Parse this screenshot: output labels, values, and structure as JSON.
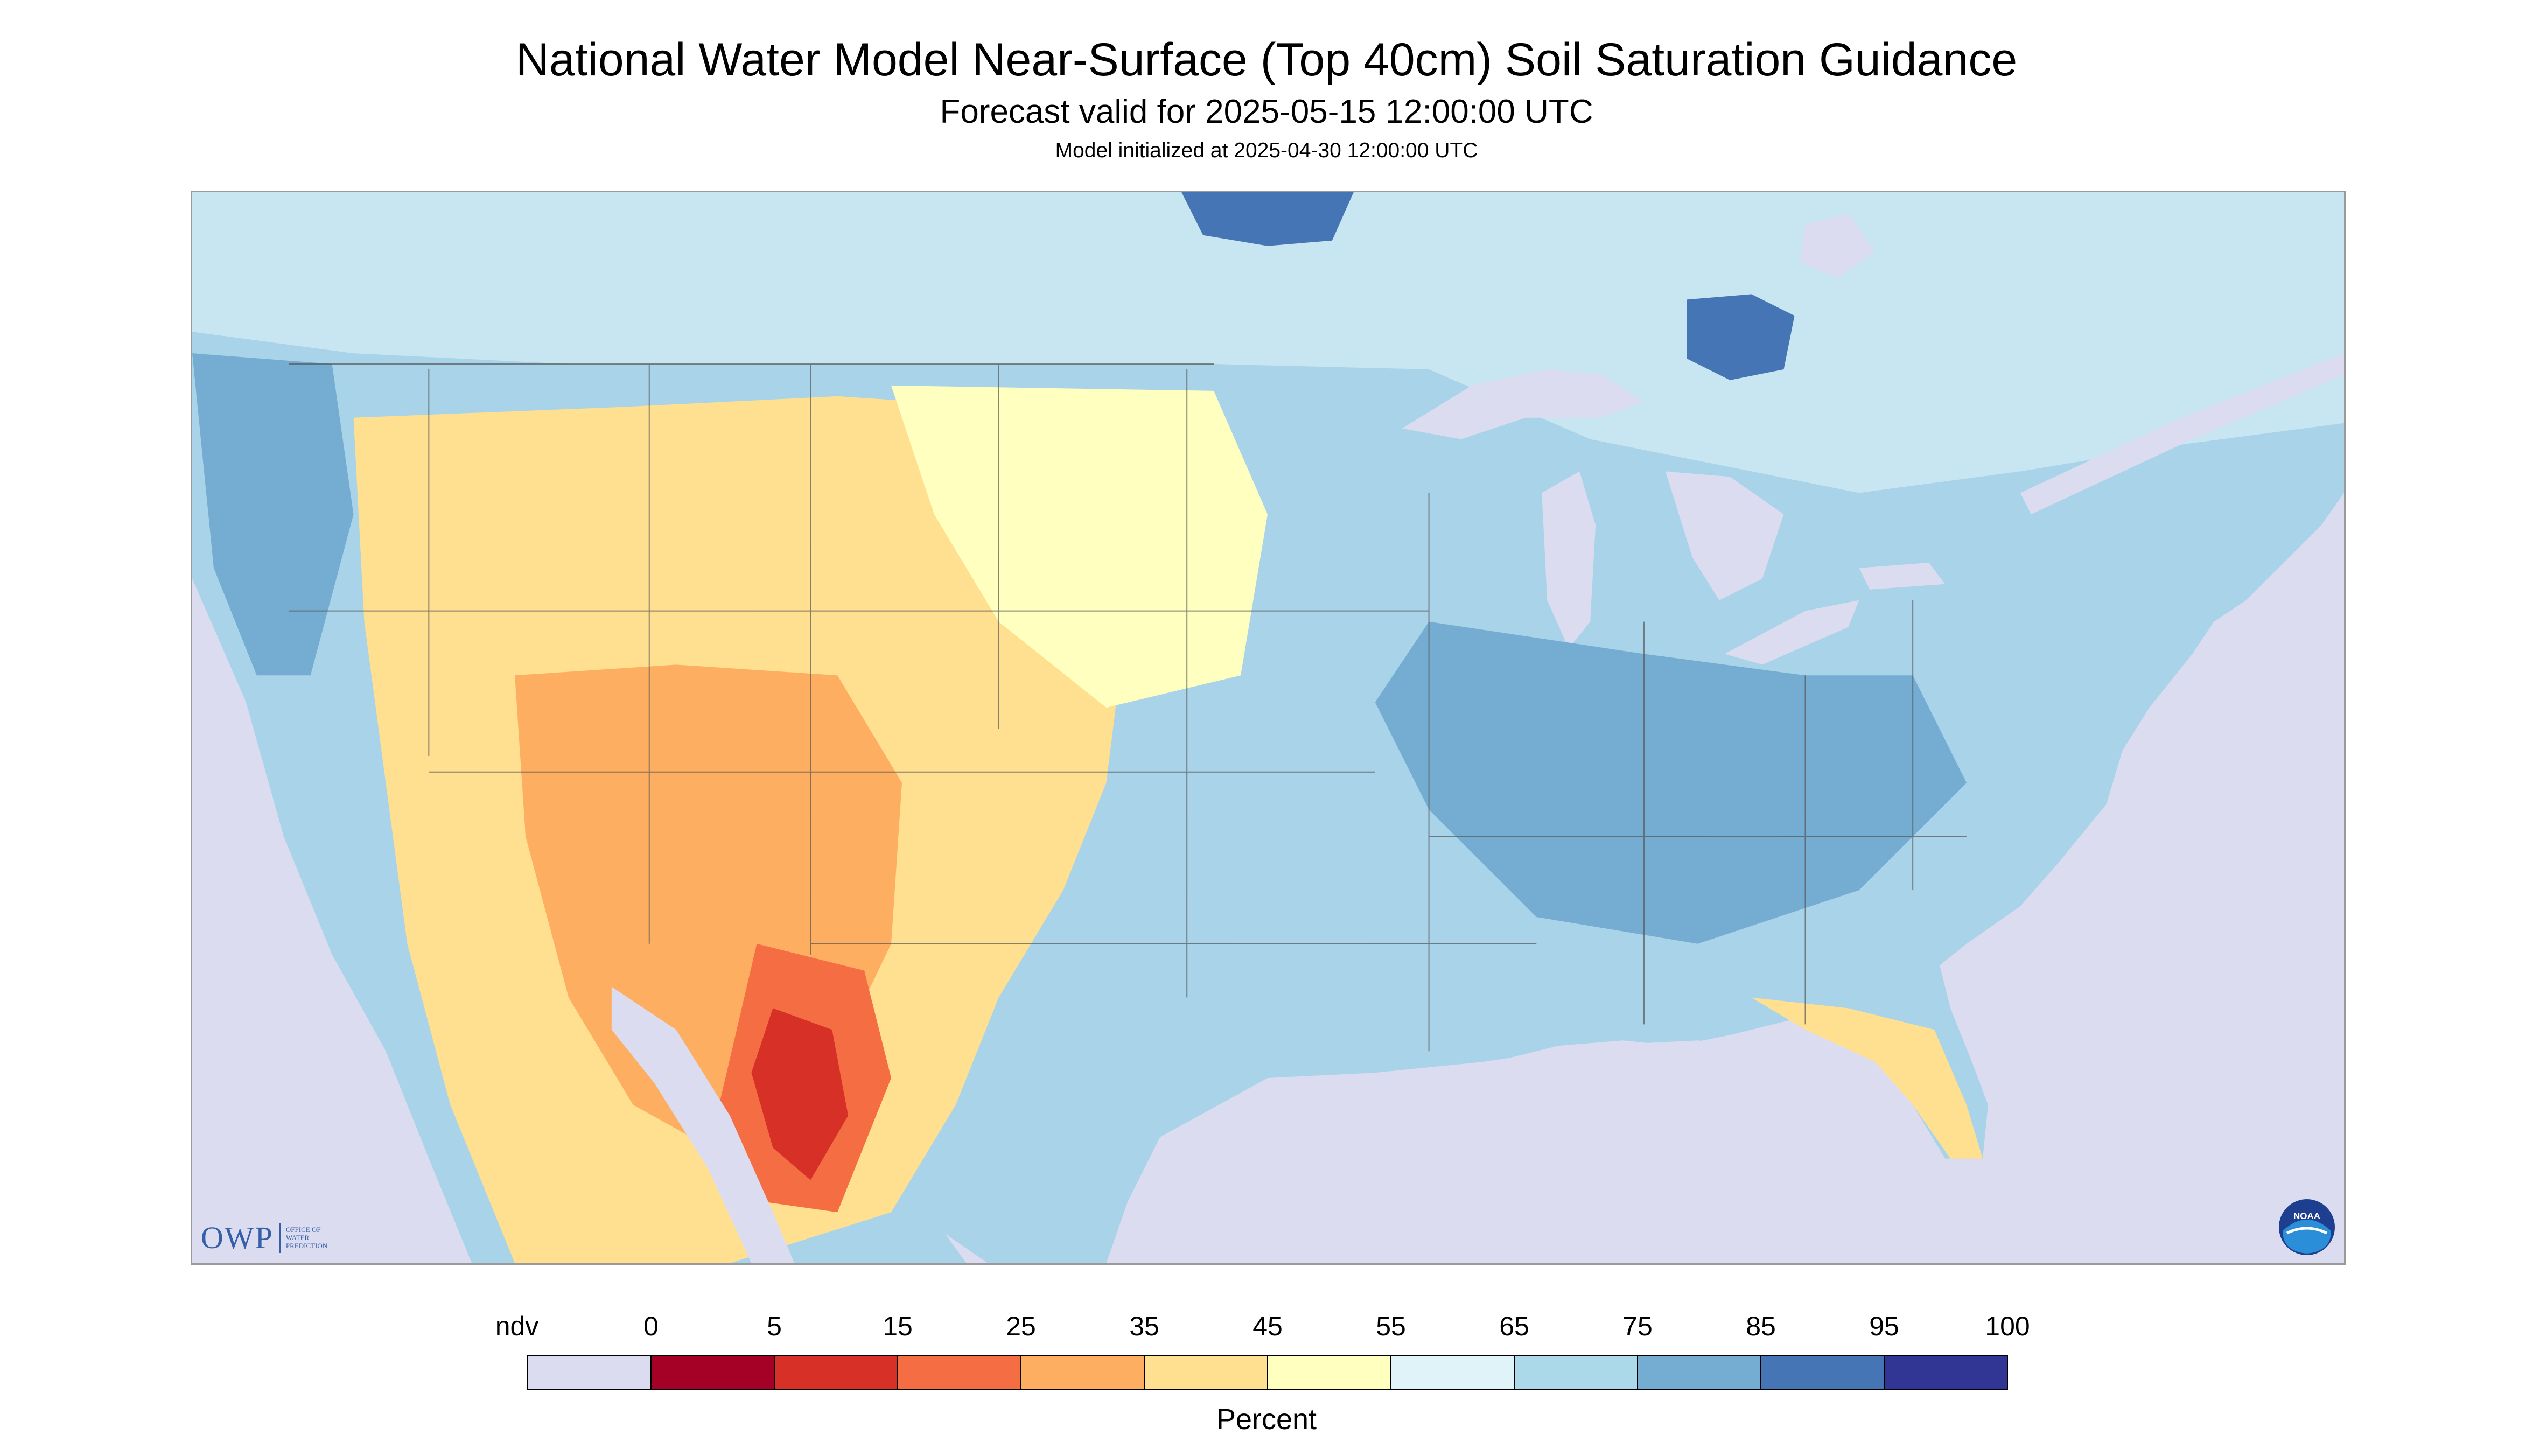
{
  "header": {
    "title": "National Water Model Near-Surface (Top 40cm) Soil Saturation Guidance",
    "subtitle": "Forecast valid for 2025-05-15 12:00:00 UTC",
    "init": "Model initialized at 2025-04-30 12:00:00 UTC"
  },
  "map": {
    "type": "choropleth raster",
    "region": "contiguous United States and surroundings",
    "background_color": "#dcdcf0",
    "water_color": "#dcdcf0"
  },
  "logos": {
    "owp_text": "OWP",
    "owp_subtext": [
      "OFFICE OF",
      "WATER",
      "PREDICTION"
    ],
    "noaa_text": "NOAA"
  },
  "legend": {
    "unit_label": "Percent",
    "ndv_label": "ndv",
    "tick_labels": [
      "0",
      "5",
      "15",
      "25",
      "35",
      "45",
      "55",
      "65",
      "75",
      "85",
      "95",
      "100"
    ],
    "colors": [
      "#dcdcf0",
      "#a50026",
      "#d73027",
      "#f46d43",
      "#fdae61",
      "#fee090",
      "#ffffbf",
      "#e0f3f8",
      "#abd9e9",
      "#74add1",
      "#4575b4",
      "#313695"
    ]
  }
}
